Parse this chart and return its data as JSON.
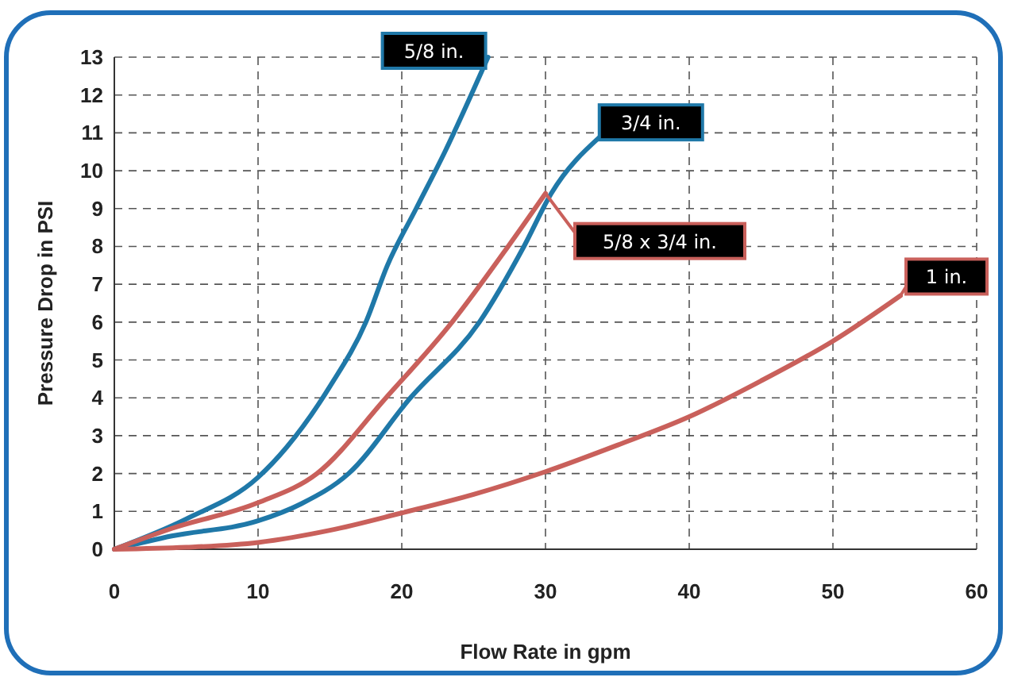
{
  "chart_data": {
    "type": "line",
    "xlabel": "Flow Rate in gpm",
    "ylabel": "Pressure Drop in PSI",
    "xlim": [
      0,
      60
    ],
    "ylim": [
      0,
      13
    ],
    "xticks": [
      0,
      10,
      20,
      30,
      40,
      50,
      60
    ],
    "yticks": [
      0,
      1,
      2,
      3,
      4,
      5,
      6,
      7,
      8,
      9,
      10,
      11,
      12,
      13
    ],
    "grid": true,
    "marker": "none",
    "line_style": "solid",
    "series": [
      {
        "name": "5/8 in.",
        "color": "#1f78a8",
        "x": [
          0,
          5,
          10,
          12,
          15,
          17.5,
          19,
          21,
          23,
          26
        ],
        "values": [
          0,
          0.8,
          1.9,
          2.7,
          4.3,
          6,
          7.5,
          9,
          10.5,
          13
        ]
      },
      {
        "name": "3/4 in.",
        "color": "#1f78a8",
        "x": [
          0,
          4,
          10,
          13,
          16.3,
          20.6,
          25.4,
          28.5,
          30.4,
          33.8
        ],
        "values": [
          0,
          0.35,
          0.75,
          1.2,
          2,
          4,
          6,
          8,
          9.4,
          10.9
        ]
      },
      {
        "name": "5/8 x 3/4 in.",
        "color": "#c9605b",
        "x": [
          0,
          4,
          10,
          14.1,
          18.9,
          23.5,
          27.4,
          30
        ],
        "values": [
          0,
          0.55,
          1.23,
          2,
          4,
          6,
          8,
          9.4
        ]
      },
      {
        "name": "1 in.",
        "color": "#c9605b",
        "x": [
          0,
          5,
          10,
          15,
          20,
          25,
          30,
          35,
          40,
          45,
          50,
          54.7
        ],
        "values": [
          0,
          0.05,
          0.18,
          0.5,
          0.96,
          1.45,
          2.05,
          2.75,
          3.5,
          4.45,
          5.5,
          6.7
        ]
      }
    ]
  }
}
